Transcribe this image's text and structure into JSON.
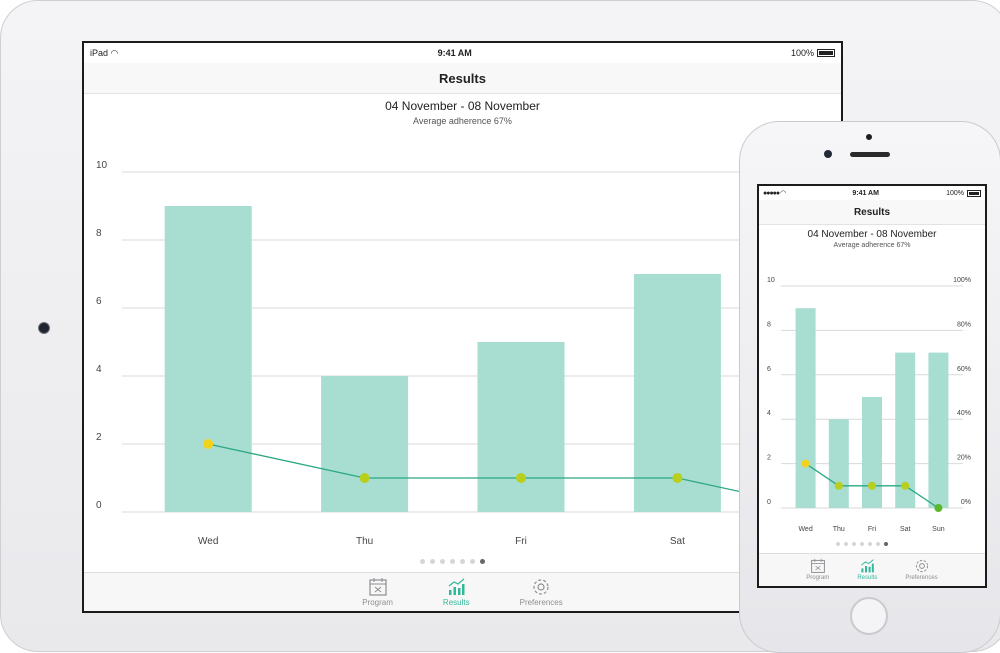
{
  "ipad": {
    "status": {
      "carrier": "iPad",
      "time": "9:41 AM",
      "battery": "100%"
    },
    "nav_title": "Results",
    "date_range": "04 November - 08 November",
    "adherence": "Average adherence 67%",
    "tabs": [
      {
        "label": "Program",
        "icon": "calendar-icon"
      },
      {
        "label": "Results",
        "icon": "chart-icon"
      },
      {
        "label": "Preferences",
        "icon": "gear-icon"
      }
    ],
    "active_tab": 1,
    "page_dots": 7,
    "active_dot": 6
  },
  "iphone": {
    "status": {
      "time": "9:41 AM",
      "battery": "100%"
    },
    "nav_title": "Results",
    "date_range": "04 November - 08 November",
    "adherence": "Average adherence 67%",
    "tabs": [
      {
        "label": "Program",
        "icon": "calendar-icon"
      },
      {
        "label": "Results",
        "icon": "chart-icon"
      },
      {
        "label": "Preferences",
        "icon": "gear-icon"
      }
    ],
    "active_tab": 1,
    "page_dots": 7,
    "active_dot": 6
  },
  "chart_data": [
    {
      "type": "bar",
      "categories": [
        "Wed",
        "Thu",
        "Fri",
        "Sat",
        "Sun"
      ],
      "values": [
        9,
        4,
        5,
        7,
        7
      ],
      "line_values": [
        2,
        1,
        1,
        1,
        0
      ],
      "ylim": [
        0,
        10
      ],
      "yticks": [
        0,
        2,
        4,
        6,
        8,
        10
      ],
      "grid": true,
      "colors": {
        "bar": "#a8ddd2",
        "line": "#2aa884",
        "point_high": "#f3d21b",
        "point_mid": "#b9cf1e",
        "point_low": "#5bb82a",
        "grid": "#d9d9d9"
      }
    },
    {
      "type": "bar",
      "categories": [
        "Wed",
        "Thu",
        "Fri",
        "Sat",
        "Sun"
      ],
      "values": [
        9,
        4,
        5,
        7,
        7
      ],
      "line_values": [
        20,
        10,
        10,
        10,
        0
      ],
      "ylim": [
        0,
        10
      ],
      "yticks": [
        0,
        2,
        4,
        6,
        8,
        10
      ],
      "y2lim": [
        0,
        100
      ],
      "y2ticks": [
        "0%",
        "20%",
        "40%",
        "60%",
        "80%",
        "100%"
      ],
      "grid": true,
      "colors": {
        "bar": "#a8ddd2",
        "line": "#2aa884",
        "point_high": "#f3d21b",
        "point_mid": "#b9cf1e",
        "point_low": "#5bb82a",
        "grid": "#d9d9d9"
      }
    }
  ]
}
